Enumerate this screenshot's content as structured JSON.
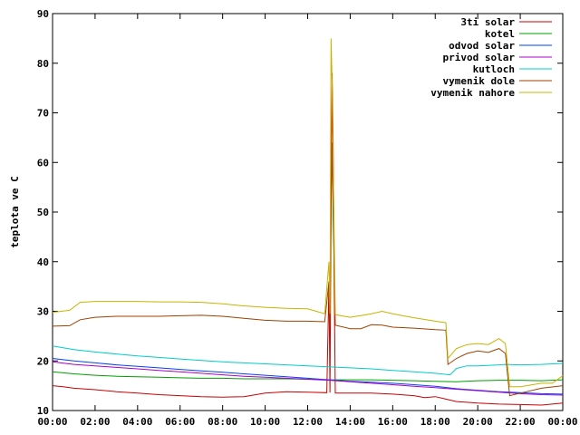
{
  "chart_data": {
    "type": "line",
    "title": "",
    "xlabel": "",
    "ylabel": "teplota ve C",
    "xlim": [
      0,
      24
    ],
    "ylim": [
      10,
      90
    ],
    "grid": false,
    "legend_position": "top-right",
    "x_tick_labels": [
      "00:00",
      "02:00",
      "04:00",
      "06:00",
      "08:00",
      "10:00",
      "12:00",
      "14:00",
      "16:00",
      "18:00",
      "20:00",
      "22:00",
      "00:00"
    ],
    "y_tick_labels": [
      "10",
      "20",
      "30",
      "40",
      "50",
      "60",
      "70",
      "80",
      "90"
    ],
    "x_unit": "hours",
    "series": [
      {
        "name": "3ti solar",
        "color": "#cc0000",
        "points": [
          [
            0,
            15
          ],
          [
            0.5,
            14.8
          ],
          [
            1,
            14.5
          ],
          [
            2,
            14.2
          ],
          [
            3,
            13.8
          ],
          [
            4,
            13.5
          ],
          [
            5,
            13.2
          ],
          [
            6,
            13
          ],
          [
            7,
            12.8
          ],
          [
            8,
            12.7
          ],
          [
            9,
            12.8
          ],
          [
            10,
            13.5
          ],
          [
            11,
            13.8
          ],
          [
            12,
            13.7
          ],
          [
            12.9,
            13.6
          ],
          [
            13.0,
            36
          ],
          [
            13.05,
            13.6
          ],
          [
            13.1,
            50
          ],
          [
            13.15,
            78
          ],
          [
            13.2,
            64
          ],
          [
            13.25,
            35
          ],
          [
            13.3,
            13.5
          ],
          [
            14,
            13.5
          ],
          [
            15,
            13.5
          ],
          [
            16,
            13.3
          ],
          [
            17,
            13
          ],
          [
            17.5,
            12.6
          ],
          [
            18,
            12.8
          ],
          [
            18.5,
            12.3
          ],
          [
            19,
            11.8
          ],
          [
            20,
            11.5
          ],
          [
            21,
            11.3
          ],
          [
            22,
            11.2
          ],
          [
            23,
            11.1
          ],
          [
            24,
            11.5
          ]
        ]
      },
      {
        "name": "kotel",
        "color": "#00a000",
        "points": [
          [
            0,
            17.8
          ],
          [
            1,
            17.4
          ],
          [
            2,
            17.1
          ],
          [
            3,
            16.9
          ],
          [
            4,
            16.8
          ],
          [
            5,
            16.7
          ],
          [
            6,
            16.6
          ],
          [
            7,
            16.5
          ],
          [
            8,
            16.5
          ],
          [
            9,
            16.4
          ],
          [
            10,
            16.4
          ],
          [
            11,
            16.4
          ],
          [
            12,
            16.3
          ],
          [
            13,
            16.2
          ],
          [
            14,
            16.2
          ],
          [
            15,
            16.2
          ],
          [
            16,
            16.1
          ],
          [
            17,
            16
          ],
          [
            18,
            15.9
          ],
          [
            19,
            15.8
          ],
          [
            20,
            16
          ],
          [
            21,
            16.1
          ],
          [
            22,
            16.1
          ],
          [
            23,
            16
          ],
          [
            24,
            16.2
          ]
        ]
      },
      {
        "name": "odvod solar",
        "color": "#0044ee",
        "points": [
          [
            0,
            20.5
          ],
          [
            1,
            20
          ],
          [
            2,
            19.6
          ],
          [
            3,
            19.2
          ],
          [
            4,
            18.9
          ],
          [
            5,
            18.6
          ],
          [
            6,
            18.3
          ],
          [
            7,
            18
          ],
          [
            8,
            17.7
          ],
          [
            9,
            17.4
          ],
          [
            10,
            17.1
          ],
          [
            11,
            16.8
          ],
          [
            12,
            16.5
          ],
          [
            13,
            16.2
          ],
          [
            14,
            15.9
          ],
          [
            15,
            15.7
          ],
          [
            16,
            15.5
          ],
          [
            17,
            15.2
          ],
          [
            18,
            14.9
          ],
          [
            19,
            14.4
          ],
          [
            20,
            14.1
          ],
          [
            21,
            13.8
          ],
          [
            22,
            13.6
          ],
          [
            23,
            13.4
          ],
          [
            24,
            13.3
          ]
        ]
      },
      {
        "name": "privod solar",
        "color": "#aa00cc",
        "points": [
          [
            0,
            19.8
          ],
          [
            1,
            19.3
          ],
          [
            2,
            19
          ],
          [
            3,
            18.7
          ],
          [
            4,
            18.4
          ],
          [
            5,
            18.1
          ],
          [
            6,
            17.8
          ],
          [
            7,
            17.5
          ],
          [
            8,
            17.2
          ],
          [
            9,
            16.9
          ],
          [
            10,
            16.7
          ],
          [
            11,
            16.5
          ],
          [
            12,
            16.3
          ],
          [
            13,
            16.1
          ],
          [
            14,
            15.8
          ],
          [
            15,
            15.5
          ],
          [
            16,
            15.2
          ],
          [
            17,
            14.9
          ],
          [
            18,
            14.6
          ],
          [
            19,
            14.3
          ],
          [
            20,
            14
          ],
          [
            21,
            13.7
          ],
          [
            22,
            13.4
          ],
          [
            23,
            13.2
          ],
          [
            24,
            13.1
          ]
        ]
      },
      {
        "name": "kutloch",
        "color": "#00cccc",
        "points": [
          [
            0,
            23
          ],
          [
            1,
            22.3
          ],
          [
            2,
            21.8
          ],
          [
            3,
            21.4
          ],
          [
            4,
            21
          ],
          [
            5,
            20.7
          ],
          [
            6,
            20.4
          ],
          [
            7,
            20.1
          ],
          [
            8,
            19.8
          ],
          [
            9,
            19.6
          ],
          [
            10,
            19.4
          ],
          [
            11,
            19.2
          ],
          [
            12,
            19
          ],
          [
            13,
            18.8
          ],
          [
            14,
            18.6
          ],
          [
            15,
            18.4
          ],
          [
            16,
            18.1
          ],
          [
            17,
            17.8
          ],
          [
            18,
            17.5
          ],
          [
            18.7,
            17.2
          ],
          [
            19,
            18.5
          ],
          [
            19.5,
            19
          ],
          [
            20,
            19
          ],
          [
            21,
            19.2
          ],
          [
            21.3,
            19.3
          ],
          [
            22,
            19.2
          ],
          [
            23,
            19.3
          ],
          [
            24,
            19.5
          ]
        ]
      },
      {
        "name": "vymenik dole",
        "color": "#a04000",
        "points": [
          [
            0,
            27
          ],
          [
            0.8,
            27.1
          ],
          [
            1.3,
            28.3
          ],
          [
            2,
            28.8
          ],
          [
            3,
            29
          ],
          [
            4,
            29
          ],
          [
            5,
            29
          ],
          [
            6,
            29.1
          ],
          [
            7,
            29.2
          ],
          [
            8,
            29
          ],
          [
            9,
            28.6
          ],
          [
            10,
            28.2
          ],
          [
            11,
            28
          ],
          [
            12,
            28
          ],
          [
            12.8,
            27.9
          ],
          [
            13.0,
            36
          ],
          [
            13.05,
            27.5
          ],
          [
            13.1,
            50
          ],
          [
            13.15,
            64
          ],
          [
            13.2,
            49
          ],
          [
            13.3,
            27.2
          ],
          [
            14,
            26.5
          ],
          [
            14.5,
            26.5
          ],
          [
            15,
            27.3
          ],
          [
            15.5,
            27.2
          ],
          [
            16,
            26.8
          ],
          [
            17,
            26.6
          ],
          [
            18,
            26.3
          ],
          [
            18.5,
            26.2
          ],
          [
            18.6,
            19.3
          ],
          [
            19,
            20.5
          ],
          [
            19.5,
            21.5
          ],
          [
            20,
            22
          ],
          [
            20.5,
            21.7
          ],
          [
            21,
            22.5
          ],
          [
            21.3,
            21.5
          ],
          [
            21.5,
            13
          ],
          [
            22,
            13.5
          ],
          [
            23,
            14.5
          ],
          [
            24,
            15
          ]
        ]
      },
      {
        "name": "vymenik nahore",
        "color": "#c8b400",
        "points": [
          [
            0,
            29.8
          ],
          [
            0.8,
            30.2
          ],
          [
            1.3,
            31.8
          ],
          [
            2,
            32
          ],
          [
            3,
            32
          ],
          [
            4,
            32
          ],
          [
            5,
            31.9
          ],
          [
            6,
            31.9
          ],
          [
            7,
            31.8
          ],
          [
            8,
            31.5
          ],
          [
            9,
            31.1
          ],
          [
            10,
            30.8
          ],
          [
            11,
            30.6
          ],
          [
            12,
            30.5
          ],
          [
            12.8,
            29.5
          ],
          [
            13.0,
            40
          ],
          [
            13.05,
            29.5
          ],
          [
            13.1,
            85
          ],
          [
            13.15,
            76
          ],
          [
            13.2,
            60
          ],
          [
            13.3,
            29.3
          ],
          [
            14,
            28.8
          ],
          [
            15,
            29.5
          ],
          [
            15.5,
            30
          ],
          [
            16,
            29.5
          ],
          [
            17,
            28.7
          ],
          [
            18,
            28
          ],
          [
            18.5,
            27.7
          ],
          [
            18.6,
            20.5
          ],
          [
            19,
            22.5
          ],
          [
            19.5,
            23.3
          ],
          [
            20,
            23.5
          ],
          [
            20.5,
            23.3
          ],
          [
            21,
            24.5
          ],
          [
            21.3,
            23.5
          ],
          [
            21.5,
            14.8
          ],
          [
            22,
            14.8
          ],
          [
            23,
            15.5
          ],
          [
            23.5,
            15.5
          ],
          [
            24,
            17
          ]
        ]
      }
    ]
  }
}
